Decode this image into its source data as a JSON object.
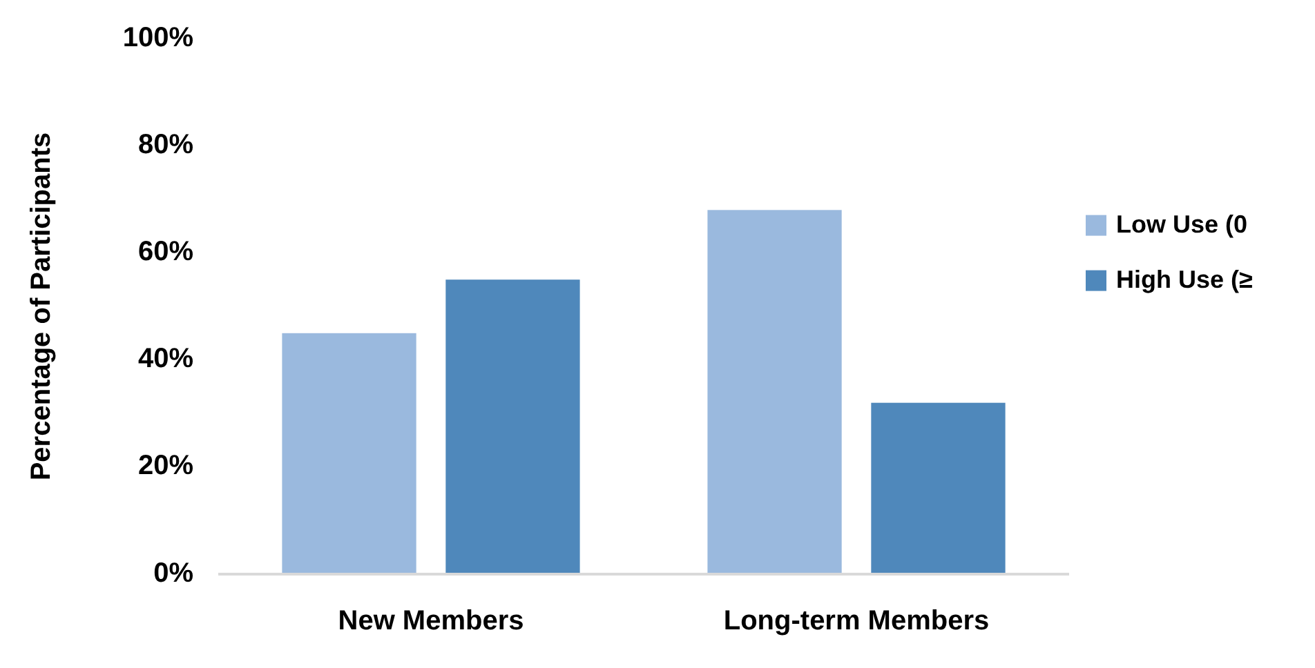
{
  "chart_data": {
    "type": "bar",
    "ylabel": "Percentage of Participants",
    "categories": [
      "New Members",
      "Long-term Members"
    ],
    "series": [
      {
        "name": "Low Use (0",
        "color": "#9ab9de",
        "values": [
          45,
          68
        ]
      },
      {
        "name": "High Use (≥",
        "color": "#4f88bb",
        "values": [
          55,
          32
        ]
      }
    ],
    "ylim": [
      0,
      100
    ],
    "yticks": [
      {
        "value": 0,
        "label": "0%"
      },
      {
        "value": 20,
        "label": "20%"
      },
      {
        "value": 40,
        "label": "40%"
      },
      {
        "value": 60,
        "label": "60%"
      },
      {
        "value": 80,
        "label": "80%"
      },
      {
        "value": 100,
        "label": "100%"
      }
    ],
    "grid": false,
    "legend": "right"
  }
}
